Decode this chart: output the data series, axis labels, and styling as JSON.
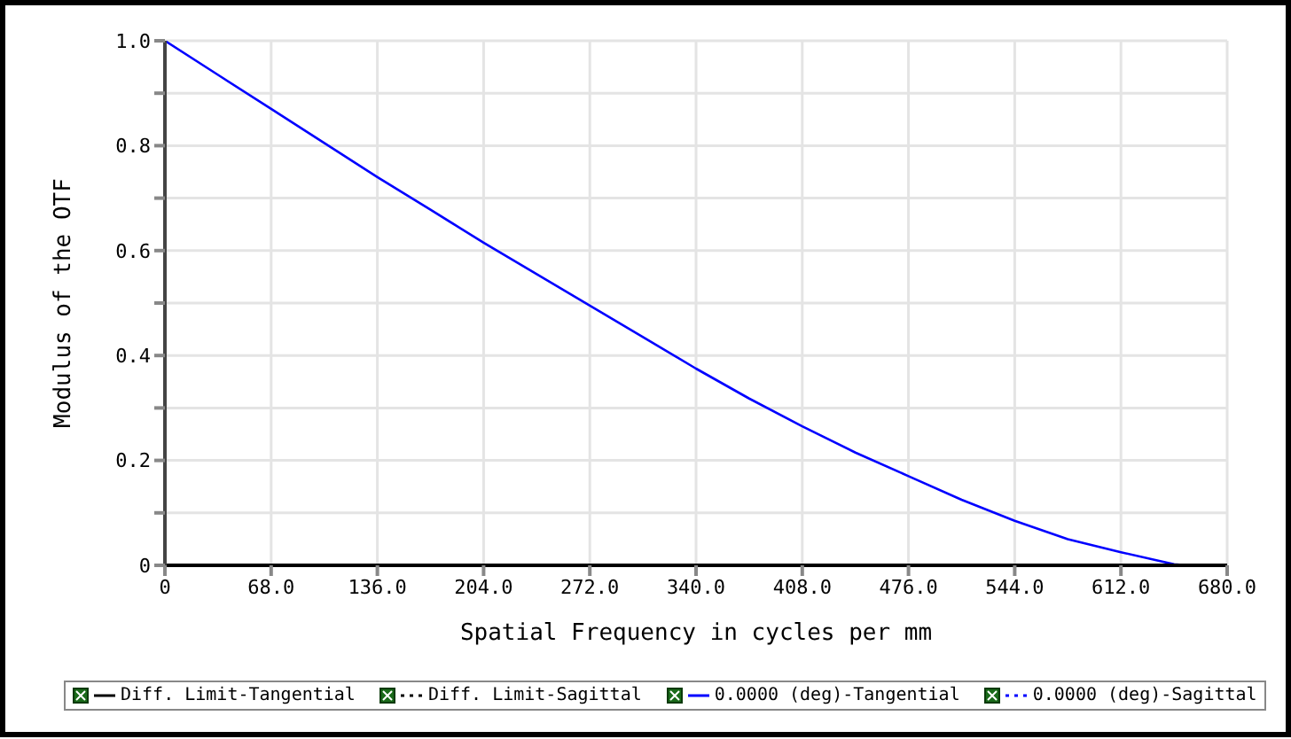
{
  "chart_data": {
    "type": "line",
    "xlabel": "Spatial Frequency in cycles per mm",
    "ylabel": "Modulus of the OTF",
    "xlim": [
      0,
      680
    ],
    "xticks": [
      {
        "value": 0,
        "label": "0"
      },
      {
        "value": 68,
        "label": "68.0"
      },
      {
        "value": 136,
        "label": "136.0"
      },
      {
        "value": 204,
        "label": "204.0"
      },
      {
        "value": 272,
        "label": "272.0"
      },
      {
        "value": 340,
        "label": "340.0"
      },
      {
        "value": 408,
        "label": "408.0"
      },
      {
        "value": 476,
        "label": "476.0"
      },
      {
        "value": 544,
        "label": "544.0"
      },
      {
        "value": 612,
        "label": "612.0"
      },
      {
        "value": 680,
        "label": "680.0"
      }
    ],
    "ylim": [
      0,
      1
    ],
    "yticks": [
      0,
      {
        "value": 0.1,
        "label": null
      },
      0.2,
      {
        "value": 0.3,
        "label": null
      },
      0.4,
      {
        "value": 0.5,
        "label": null
      },
      0.6,
      {
        "value": 0.7,
        "label": null
      },
      0.8,
      {
        "value": 0.9,
        "label": null
      },
      {
        "value": 1,
        "label": "1.0"
      }
    ],
    "grid": true,
    "legend": "bottom",
    "marker": "none",
    "series": [
      {
        "name": "Diff. Limit-Tangential",
        "color": "#000000",
        "line_style": "solid"
      },
      {
        "name": "Diff. Limit-Sagittal",
        "color": "#000000",
        "line_style": "dotted"
      },
      {
        "name": "0.0000 (deg)-Tangential",
        "color": "#0000ff",
        "line_style": "solid",
        "x": [
          0,
          34,
          68,
          102,
          136,
          170,
          204,
          238,
          272,
          306,
          340,
          374,
          408,
          442,
          476,
          510,
          544,
          578,
          612,
          646,
          655,
          680
        ],
        "values": [
          1,
          0.935,
          0.87,
          0.805,
          0.74,
          0.678,
          0.615,
          0.555,
          0.495,
          0.435,
          0.375,
          0.318,
          0.265,
          0.215,
          0.17,
          0.125,
          0.085,
          0.05,
          0.025,
          0.002,
          0,
          0
        ]
      },
      {
        "name": "0.0000 (deg)-Sagittal",
        "color": "#0000ff",
        "line_style": "dotted"
      }
    ]
  }
}
